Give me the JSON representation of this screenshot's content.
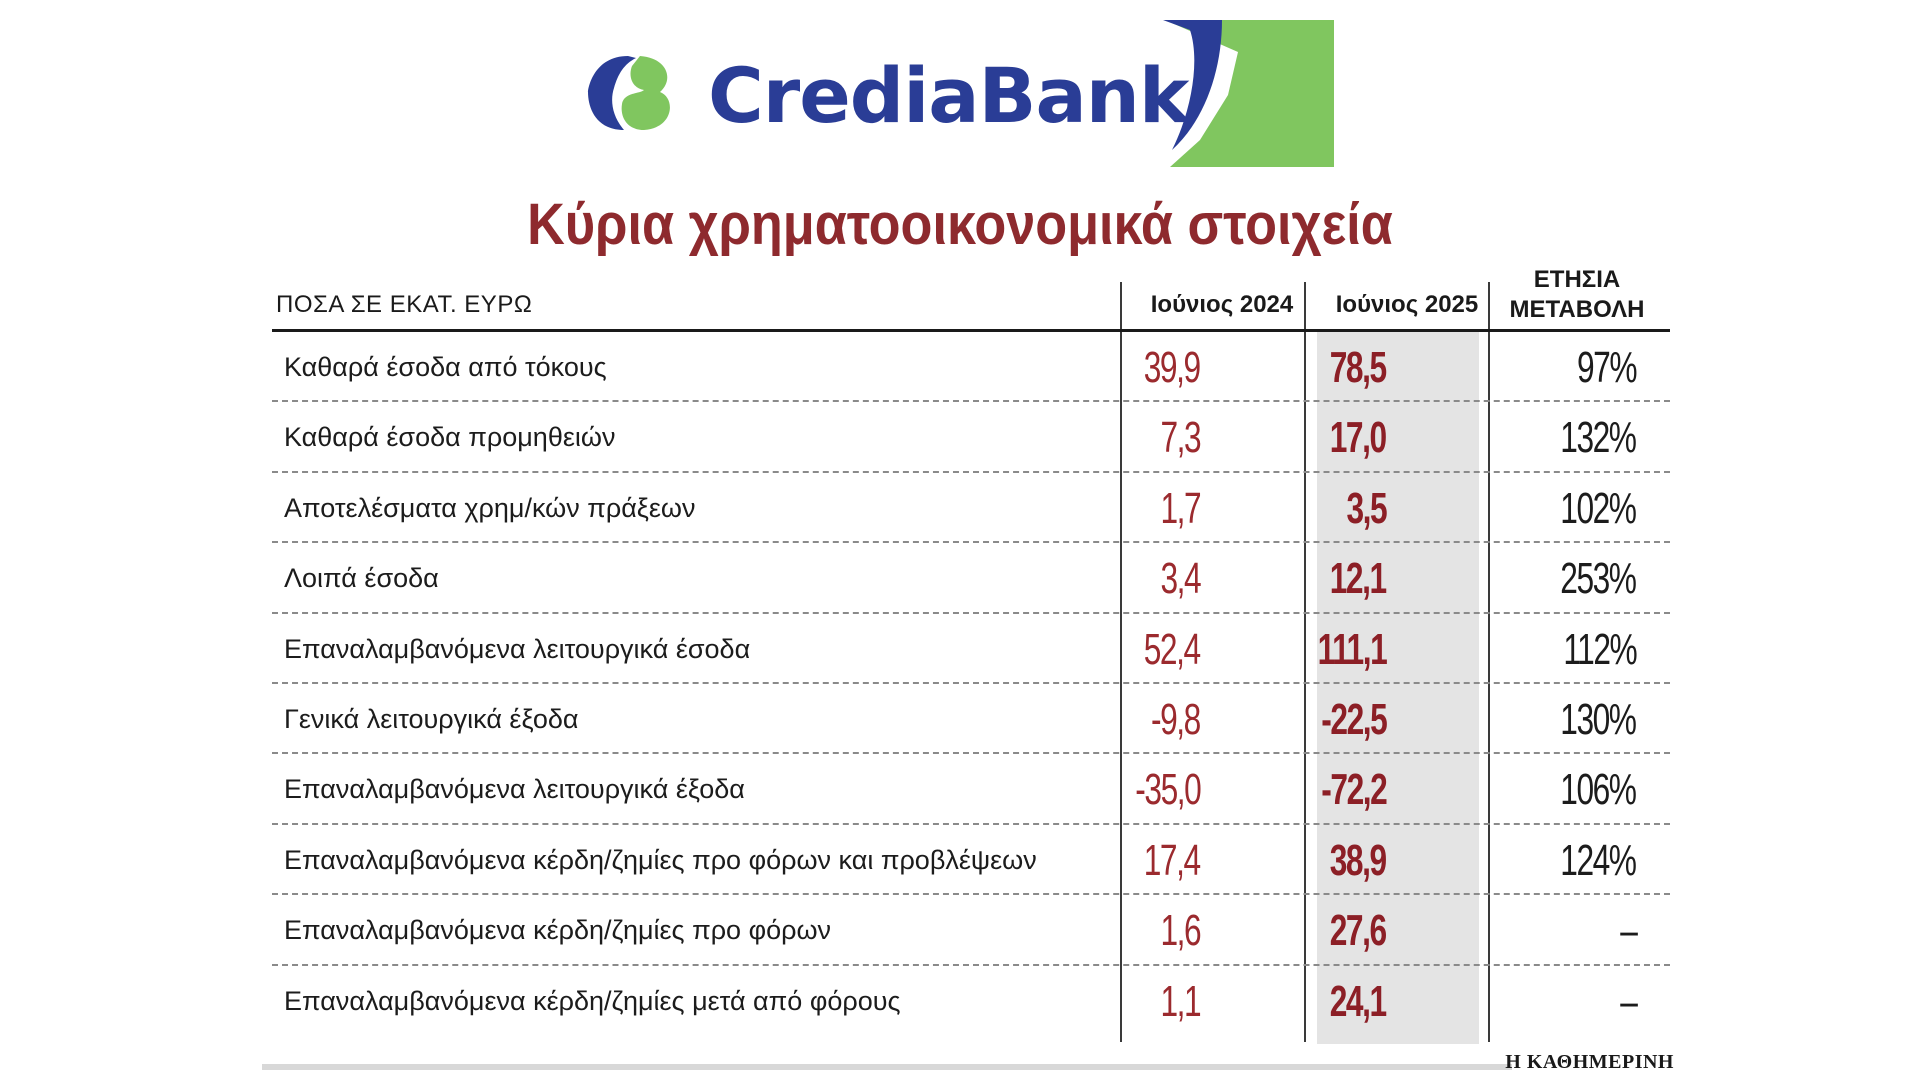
{
  "logo": {
    "brand": "CrediaBank",
    "colors": {
      "blue": "#2a3d96",
      "green": "#80c65f"
    }
  },
  "title": "Κύρια χρηματοοικονομικά στοιχεία",
  "table": {
    "units_label": "ΠΟΣΑ ΣΕ ΕΚΑΤ. ΕΥΡΩ",
    "columns": {
      "june_2024": "Ιούνιος 2024",
      "june_2025": "Ιούνιος 2025",
      "annual_change_line1": "ΕΤΗΣΙΑ",
      "annual_change_line2": "ΜΕΤΑΒΟΛΗ"
    },
    "rows": [
      {
        "label": "Καθαρά έσοδα από τόκους",
        "june_2024": "39,9",
        "june_2025": "78,5",
        "change": "97%"
      },
      {
        "label": "Καθαρά έσοδα προμηθειών",
        "june_2024": "7,3",
        "june_2025": "17,0",
        "change": "132%"
      },
      {
        "label": "Αποτελέσματα χρημ/κών πράξεων",
        "june_2024": "1,7",
        "june_2025": "3,5",
        "change": "102%"
      },
      {
        "label": "Λοιπά έσοδα",
        "june_2024": "3,4",
        "june_2025": "12,1",
        "change": "253%"
      },
      {
        "label": "Επαναλαμβανόμενα λειτουργικά έσοδα",
        "june_2024": "52,4",
        "june_2025": "111,1",
        "change": "112%"
      },
      {
        "label": "Γενικά λειτουργικά έξοδα",
        "june_2024": "-9,8",
        "june_2025": "-22,5",
        "change": "130%"
      },
      {
        "label": "Επαναλαμβανόμενα λειτουργικά έξοδα",
        "june_2024": "-35,0",
        "june_2025": "-72,2",
        "change": "106%"
      },
      {
        "label": "Επαναλαμβανόμενα κέρδη/ζημίες προ φόρων και προβλέψεων",
        "june_2024": "17,4",
        "june_2025": "38,9",
        "change": "124%"
      },
      {
        "label": "Επαναλαμβανόμενα κέρδη/ζημίες προ φόρων",
        "june_2024": "1,6",
        "june_2025": "27,6",
        "change": "–"
      },
      {
        "label": "Επαναλαμβανόμενα κέρδη/ζημίες μετά από φόρους",
        "june_2024": "1,1",
        "june_2025": "24,1",
        "change": "–"
      }
    ]
  },
  "source": "Η ΚΑΘΗΜΕΡΙΝΗ"
}
